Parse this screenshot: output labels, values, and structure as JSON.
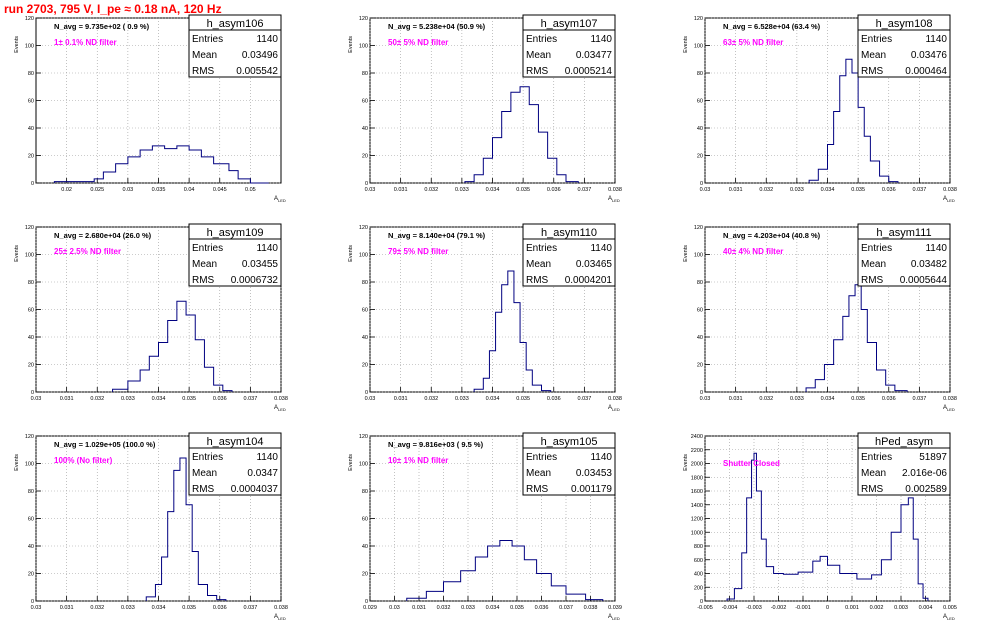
{
  "page": {
    "title": "run 2703,   795 V, I_pe ≈ 0.18 nA, 120 Hz"
  },
  "panel_common": {
    "ylabel": "Events",
    "xlabel": "A",
    "xlabel_sub": "LED",
    "stats_labels": [
      "Entries",
      "Mean",
      "RMS"
    ]
  },
  "colors": {
    "hist_line": "#000080",
    "grid": "#999999",
    "title_text": "#ff0000",
    "annotation_text": "#ff00ff"
  },
  "chart_data": [
    {
      "type": "bar",
      "histogram": "h_asym106",
      "navg": "N_avg = 9.735e+02 ( 0.9 %)",
      "note": "1± 0.1% ND filter",
      "stats": {
        "entries": "1140",
        "mean": "0.03496",
        "rms": "0.005542"
      },
      "xlim": [
        0.015,
        0.055
      ],
      "ylim": [
        0,
        120
      ],
      "xticks": [
        0.02,
        0.025,
        0.03,
        0.035,
        0.04,
        0.045,
        0.05
      ],
      "xtick_labels": [
        "0.02",
        "0.025",
        "0.03",
        "0.035",
        "0.04",
        "0.045",
        "0.05"
      ],
      "yticks": [
        0,
        20,
        40,
        60,
        80,
        100,
        120
      ],
      "ytick_labels": [
        "0",
        "20",
        "40",
        "60",
        "80",
        "100",
        "120"
      ],
      "edges": [
        0.018,
        0.0245,
        0.026,
        0.028,
        0.03,
        0.032,
        0.034,
        0.036,
        0.038,
        0.04,
        0.042,
        0.044,
        0.0465,
        0.048,
        0.05,
        0.053
      ],
      "values": [
        1,
        3,
        8,
        14,
        19,
        24,
        27,
        25,
        27,
        24,
        19,
        14,
        9,
        3,
        0
      ]
    },
    {
      "type": "bar",
      "histogram": "h_asym107",
      "navg": "N_avg = 5.238e+04 (50.9 %)",
      "note": "50± 5% ND filter",
      "stats": {
        "entries": "1140",
        "mean": "0.03477",
        "rms": "0.0005214"
      },
      "xlim": [
        0.03,
        0.038
      ],
      "ylim": [
        0,
        120
      ],
      "xticks": [
        0.03,
        0.031,
        0.032,
        0.033,
        0.034,
        0.035,
        0.036,
        0.037,
        0.038
      ],
      "xtick_labels": [
        "0.03",
        "0.031",
        "0.032",
        "0.033",
        "0.034",
        "0.035",
        "0.036",
        "0.037",
        "0.038"
      ],
      "yticks": [
        0,
        20,
        40,
        60,
        80,
        100,
        120
      ],
      "ytick_labels": [
        "0",
        "20",
        "40",
        "60",
        "80",
        "100",
        "120"
      ],
      "edges": [
        0.0331,
        0.0334,
        0.0337,
        0.034,
        0.0343,
        0.0346,
        0.0349,
        0.0352,
        0.0355,
        0.0358,
        0.0361,
        0.0364,
        0.0368
      ],
      "values": [
        1,
        6,
        18,
        33,
        52,
        66,
        70,
        57,
        37,
        18,
        6,
        1
      ]
    },
    {
      "type": "bar",
      "histogram": "h_asym108",
      "navg": "N_avg = 6.528e+04 (63.4 %)",
      "note": "63± 5% ND filter",
      "stats": {
        "entries": "1140",
        "mean": "0.03476",
        "rms": "0.000464"
      },
      "xlim": [
        0.03,
        0.038
      ],
      "ylim": [
        0,
        120
      ],
      "xticks": [
        0.03,
        0.031,
        0.032,
        0.033,
        0.034,
        0.035,
        0.036,
        0.037,
        0.038
      ],
      "xtick_labels": [
        "0.03",
        "0.031",
        "0.032",
        "0.033",
        "0.034",
        "0.035",
        "0.036",
        "0.037",
        "0.038"
      ],
      "yticks": [
        0,
        20,
        40,
        60,
        80,
        100,
        120
      ],
      "ytick_labels": [
        "0",
        "20",
        "40",
        "60",
        "80",
        "100",
        "120"
      ],
      "edges": [
        0.0334,
        0.0337,
        0.034,
        0.0342,
        0.0344,
        0.0346,
        0.0348,
        0.035,
        0.0352,
        0.0354,
        0.0357,
        0.036,
        0.0363
      ],
      "values": [
        2,
        10,
        28,
        52,
        78,
        90,
        80,
        55,
        34,
        16,
        5,
        1
      ]
    },
    {
      "type": "bar",
      "histogram": "h_asym109",
      "navg": "N_avg = 2.680e+04 (26.0 %)",
      "note": "25± 2.5% ND filter",
      "stats": {
        "entries": "1140",
        "mean": "0.03455",
        "rms": "0.0006732"
      },
      "xlim": [
        0.03,
        0.038
      ],
      "ylim": [
        0,
        120
      ],
      "xticks": [
        0.03,
        0.031,
        0.032,
        0.033,
        0.034,
        0.035,
        0.036,
        0.037,
        0.038
      ],
      "xtick_labels": [
        "0.03",
        "0.031",
        "0.032",
        "0.033",
        "0.034",
        "0.035",
        "0.036",
        "0.037",
        "0.038"
      ],
      "yticks": [
        0,
        20,
        40,
        60,
        80,
        100,
        120
      ],
      "ytick_labels": [
        "0",
        "20",
        "40",
        "60",
        "80",
        "100",
        "120"
      ],
      "edges": [
        0.0325,
        0.033,
        0.0334,
        0.0337,
        0.034,
        0.0343,
        0.0346,
        0.0349,
        0.0352,
        0.0355,
        0.0358,
        0.0361,
        0.0364
      ],
      "values": [
        2,
        8,
        16,
        26,
        36,
        52,
        66,
        56,
        38,
        18,
        5,
        1
      ]
    },
    {
      "type": "bar",
      "histogram": "h_asym110",
      "navg": "N_avg = 8.140e+04 (79.1 %)",
      "note": "79± 5% ND filter",
      "stats": {
        "entries": "1140",
        "mean": "0.03465",
        "rms": "0.0004201"
      },
      "xlim": [
        0.03,
        0.038
      ],
      "ylim": [
        0,
        120
      ],
      "xticks": [
        0.03,
        0.031,
        0.032,
        0.033,
        0.034,
        0.035,
        0.036,
        0.037,
        0.038
      ],
      "xtick_labels": [
        "0.03",
        "0.031",
        "0.032",
        "0.033",
        "0.034",
        "0.035",
        "0.036",
        "0.037",
        "0.038"
      ],
      "yticks": [
        0,
        20,
        40,
        60,
        80,
        100,
        120
      ],
      "ytick_labels": [
        "0",
        "20",
        "40",
        "60",
        "80",
        "100",
        "120"
      ],
      "edges": [
        0.0334,
        0.0337,
        0.0339,
        0.0341,
        0.0343,
        0.0345,
        0.0347,
        0.0349,
        0.0351,
        0.0353,
        0.0356,
        0.0359
      ],
      "values": [
        2,
        10,
        30,
        58,
        78,
        88,
        65,
        36,
        16,
        5,
        1
      ]
    },
    {
      "type": "bar",
      "histogram": "h_asym111",
      "navg": "N_avg = 4.203e+04 (40.8 %)",
      "note": "40± 4% ND filter",
      "stats": {
        "entries": "1140",
        "mean": "0.03482",
        "rms": "0.0005644"
      },
      "xlim": [
        0.03,
        0.038
      ],
      "ylim": [
        0,
        120
      ],
      "xticks": [
        0.03,
        0.031,
        0.032,
        0.033,
        0.034,
        0.035,
        0.036,
        0.037,
        0.038
      ],
      "xtick_labels": [
        "0.03",
        "0.031",
        "0.032",
        "0.033",
        "0.034",
        "0.035",
        "0.036",
        "0.037",
        "0.038"
      ],
      "yticks": [
        0,
        20,
        40,
        60,
        80,
        100,
        120
      ],
      "ytick_labels": [
        "0",
        "20",
        "40",
        "60",
        "80",
        "100",
        "120"
      ],
      "edges": [
        0.0333,
        0.0336,
        0.0339,
        0.0342,
        0.0345,
        0.0347,
        0.0349,
        0.0351,
        0.0353,
        0.0356,
        0.0359,
        0.0362,
        0.0366
      ],
      "values": [
        3,
        9,
        20,
        38,
        55,
        70,
        78,
        60,
        36,
        16,
        5,
        1
      ]
    },
    {
      "type": "bar",
      "histogram": "h_asym104",
      "navg": "N_avg = 1.029e+05 (100.0 %)",
      "note": "100% (No filter)",
      "stats": {
        "entries": "1140",
        "mean": "0.0347",
        "rms": "0.0004037"
      },
      "xlim": [
        0.03,
        0.038
      ],
      "ylim": [
        0,
        120
      ],
      "xticks": [
        0.03,
        0.031,
        0.032,
        0.033,
        0.034,
        0.035,
        0.036,
        0.037,
        0.038
      ],
      "xtick_labels": [
        "0.03",
        "0.031",
        "0.032",
        "0.033",
        "0.034",
        "0.035",
        "0.036",
        "0.037",
        "0.038"
      ],
      "yticks": [
        0,
        20,
        40,
        60,
        80,
        100,
        120
      ],
      "ytick_labels": [
        "0",
        "20",
        "40",
        "60",
        "80",
        "100",
        "120"
      ],
      "edges": [
        0.0336,
        0.0339,
        0.0341,
        0.0343,
        0.0345,
        0.0347,
        0.0349,
        0.0351,
        0.0353,
        0.0356,
        0.0359,
        0.0362
      ],
      "values": [
        3,
        12,
        32,
        65,
        95,
        104,
        70,
        36,
        12,
        4,
        1
      ]
    },
    {
      "type": "bar",
      "histogram": "h_asym105",
      "navg": "N_avg = 9.816e+03 ( 9.5 %)",
      "note": "10± 1% ND filter",
      "stats": {
        "entries": "1140",
        "mean": "0.03453",
        "rms": "0.001179"
      },
      "xlim": [
        0.029,
        0.039
      ],
      "ylim": [
        0,
        120
      ],
      "xticks": [
        0.029,
        0.03,
        0.031,
        0.032,
        0.033,
        0.034,
        0.035,
        0.036,
        0.037,
        0.038,
        0.039
      ],
      "xtick_labels": [
        "0.029",
        "0.03",
        "0.031",
        "0.032",
        "0.033",
        "0.034",
        "0.035",
        "0.036",
        "0.037",
        "0.038",
        "0.039"
      ],
      "yticks": [
        0,
        20,
        40,
        60,
        80,
        100,
        120
      ],
      "ytick_labels": [
        "0",
        "20",
        "40",
        "60",
        "80",
        "100",
        "120"
      ],
      "edges": [
        0.0305,
        0.0313,
        0.032,
        0.0327,
        0.0333,
        0.0338,
        0.0343,
        0.0348,
        0.0353,
        0.0358,
        0.0364,
        0.037,
        0.0378,
        0.0385
      ],
      "values": [
        2,
        7,
        14,
        22,
        32,
        40,
        44,
        40,
        30,
        20,
        11,
        5,
        1
      ]
    },
    {
      "type": "bar",
      "histogram": "hPed_asym",
      "navg": "",
      "note": "Shutter Closed",
      "stats": {
        "entries": "51897",
        "mean": "2.016e-06",
        "rms": "0.002589"
      },
      "xlim": [
        -0.005,
        0.005
      ],
      "ylim": [
        0,
        2400
      ],
      "xticks": [
        -0.005,
        -0.004,
        -0.003,
        -0.002,
        -0.001,
        0,
        0.001,
        0.002,
        0.003,
        0.004,
        0.005
      ],
      "xtick_labels": [
        "-0.005",
        "-0.004",
        "-0.003",
        "-0.002",
        "-0.001",
        "0",
        "0.001",
        "0.002",
        "0.003",
        "0.004",
        "0.005"
      ],
      "yticks": [
        0,
        200,
        400,
        600,
        800,
        1000,
        1200,
        1400,
        1600,
        1800,
        2000,
        2200,
        2400
      ],
      "ytick_labels": [
        "0",
        "200",
        "400",
        "600",
        "800",
        "1000",
        "1200",
        "1400",
        "1600",
        "1800",
        "2000",
        "2200",
        "2400"
      ],
      "edges": [
        -0.0041,
        -0.0038,
        -0.0035,
        -0.0033,
        -0.0031,
        -0.003,
        -0.0029,
        -0.0027,
        -0.0025,
        -0.0022,
        -0.0018,
        -0.0012,
        -0.0006,
        -0.0003,
        0.0,
        0.0005,
        0.0012,
        0.0018,
        0.0022,
        0.0026,
        0.003,
        0.0033,
        0.0035,
        0.0037,
        0.0039,
        0.0041
      ],
      "values": [
        30,
        180,
        700,
        1500,
        2050,
        2150,
        1600,
        900,
        500,
        400,
        390,
        420,
        580,
        650,
        520,
        400,
        320,
        380,
        600,
        1000,
        1400,
        1500,
        900,
        250,
        40
      ]
    }
  ]
}
